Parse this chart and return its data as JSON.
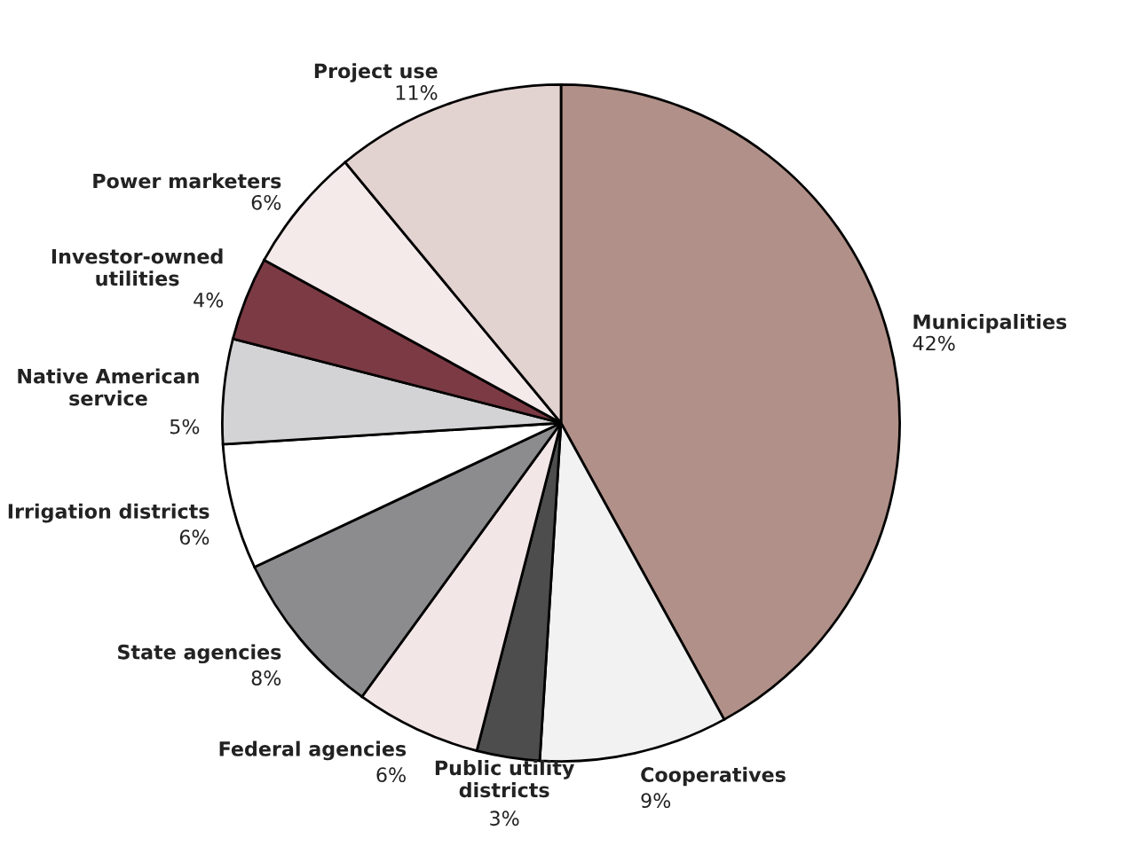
{
  "chart_data": {
    "type": "pie",
    "categories": [
      "Municipalities",
      "Cooperatives",
      "Public utility\ndistricts",
      "Federal agencies",
      "State agencies",
      "Irrigation districts",
      "Native American\nservice",
      "Investor-owned\nutilities",
      "Power marketers",
      "Project use"
    ],
    "values": [
      42,
      9,
      3,
      6,
      8,
      6,
      5,
      4,
      6,
      11
    ],
    "colors": [
      "#b09088",
      "#f2f2f2",
      "#4d4d4d",
      "#f3e6e6",
      "#8c8c8e",
      "#ffffff",
      "#d3d3d5",
      "#7b3a44",
      "#f5eaea",
      "#e3d3d0"
    ],
    "value_labels": [
      "42%",
      "9%",
      "3%",
      "6%",
      "8%",
      "6%",
      "5%",
      "4%",
      "6%",
      "11%"
    ],
    "legend": false
  }
}
